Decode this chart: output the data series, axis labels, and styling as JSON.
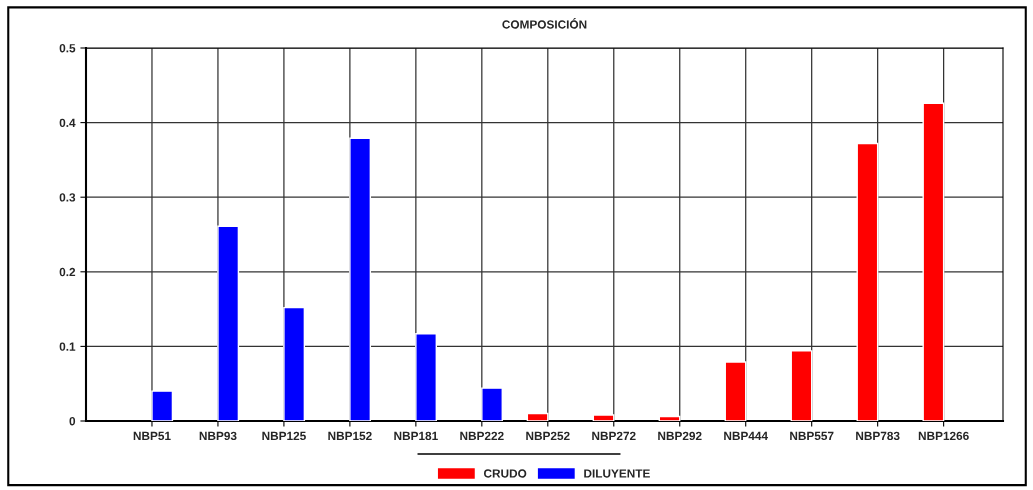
{
  "chart_data": {
    "type": "bar",
    "title": "COMPOSICIÓN",
    "categories": [
      "NBP51",
      "NBP93",
      "NBP125",
      "NBP152",
      "NBP181",
      "NBP222",
      "NBP252",
      "NBP272",
      "NBP292",
      "NBP444",
      "NBP557",
      "NBP783",
      "NBP1266"
    ],
    "series": [
      {
        "name": "CRUDO",
        "color": "#ff0000",
        "values": [
          null,
          null,
          null,
          null,
          null,
          null,
          0.01,
          0.008,
          0.006,
          0.079,
          0.094,
          0.372,
          0.426
        ]
      },
      {
        "name": "DILUYENTE",
        "color": "#0000ff",
        "values": [
          0.04,
          0.261,
          0.152,
          0.379,
          0.117,
          0.044,
          null,
          null,
          null,
          null,
          null,
          null,
          null
        ]
      }
    ],
    "ylim": [
      0,
      0.5
    ],
    "yticks": [
      {
        "value": 0,
        "label": "0"
      },
      0.1,
      0.2,
      0.3,
      0.4,
      0.5
    ],
    "grid": true,
    "legend": "bottom"
  }
}
